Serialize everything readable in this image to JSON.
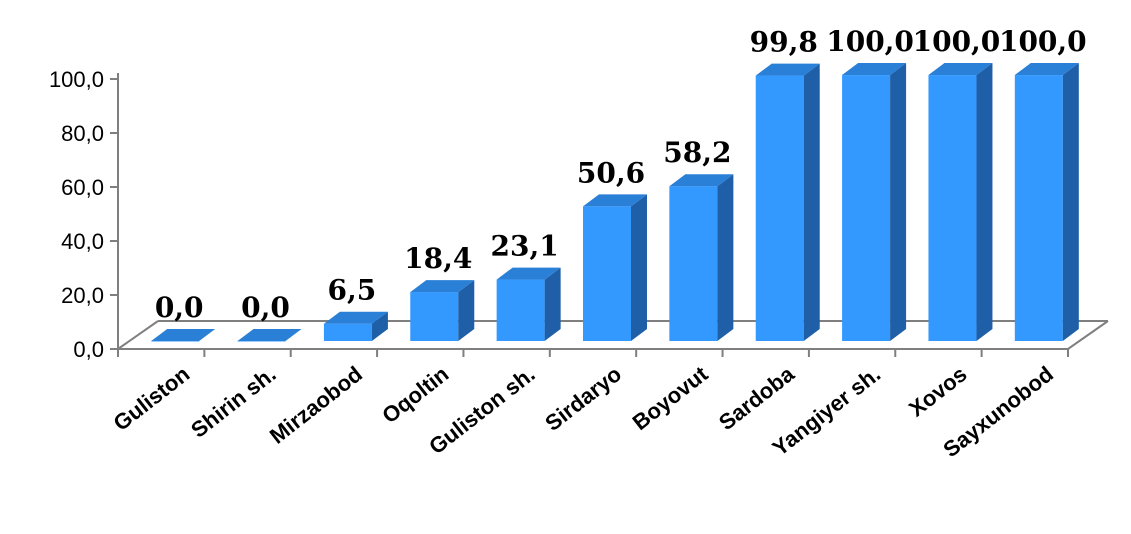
{
  "chart_data": {
    "type": "bar",
    "categories": [
      "Guliston",
      "Shirin sh.",
      "Mirzaobod",
      "Oqoltin",
      "Guliston sh.",
      "Sirdaryo",
      "Boyovut",
      "Sardoba",
      "Yangiyer sh.",
      "Xovos",
      "Sayxunobod"
    ],
    "values": [
      0.0,
      0.0,
      6.5,
      18.4,
      23.1,
      50.6,
      58.2,
      99.8,
      100.0,
      100.0,
      100.0
    ],
    "value_labels": [
      "0,0",
      "0,0",
      "6,5",
      "18,4",
      "23,1",
      "50,6",
      "58,2",
      "99,8",
      "100,0",
      "100,0",
      "100,0"
    ],
    "y_ticks": [
      "0,0",
      "20,0",
      "40,0",
      "60,0",
      "80,0",
      "100,0"
    ],
    "ylim": [
      0,
      100
    ],
    "grid": false,
    "style": "3d-column",
    "colors": {
      "front": "#3399ff",
      "side": "#1f5fa8",
      "top": "#2a7fd6",
      "axis": "#7f7f7f"
    }
  }
}
